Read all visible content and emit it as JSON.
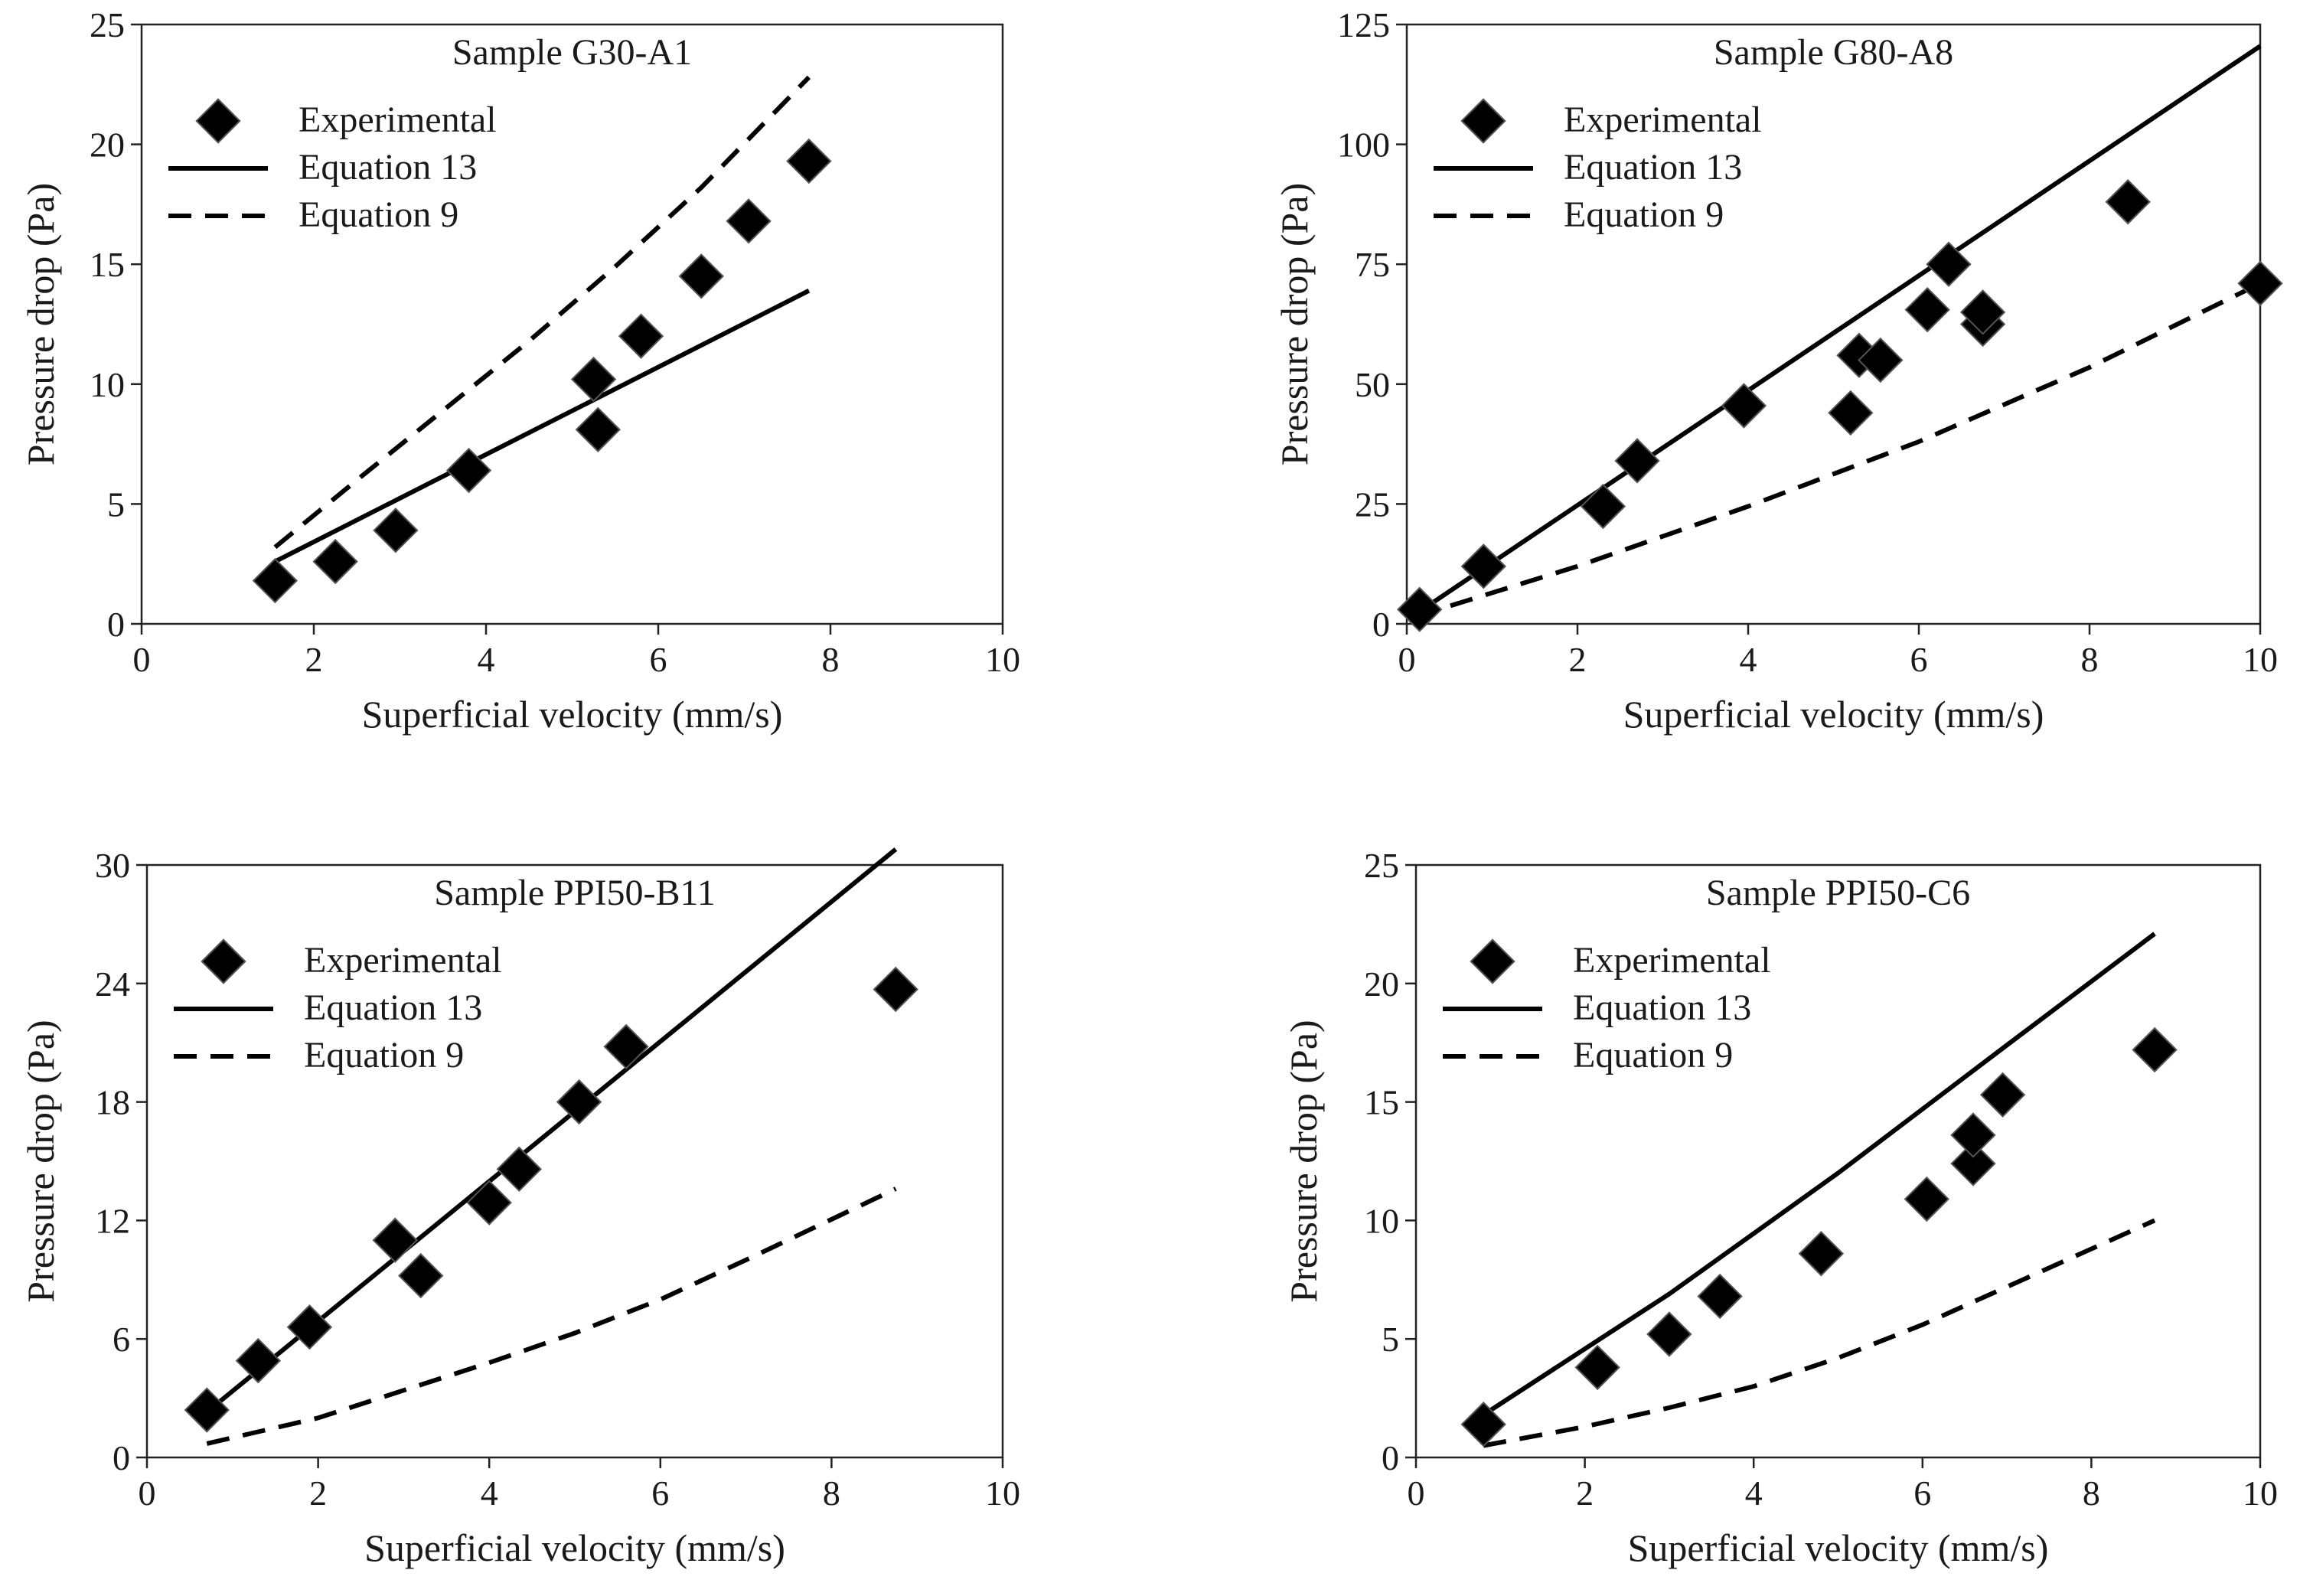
{
  "figure": {
    "legend_labels": {
      "experimental": "Experimental",
      "eq13": "Equation 13",
      "eq9": "Equation 9"
    },
    "colors": {
      "axis": "#222222",
      "series": "#000000",
      "background": "#ffffff"
    }
  },
  "chart_data": [
    {
      "id": "g30",
      "type": "scatter",
      "title": "Sample G30-A1",
      "xlabel": "Superficial velocity (mm/s)",
      "ylabel": "Pressure drop (Pa)",
      "xlim": [
        0,
        10
      ],
      "ylim": [
        0,
        25
      ],
      "xticks": [
        0,
        2,
        4,
        6,
        8,
        10
      ],
      "yticks": [
        0,
        5,
        10,
        15,
        20,
        25
      ],
      "legend_position": "top-left",
      "experimental": {
        "name": "Experimental",
        "points": [
          [
            1.55,
            1.8
          ],
          [
            2.25,
            2.6
          ],
          [
            2.95,
            3.9
          ],
          [
            3.8,
            6.4
          ],
          [
            5.25,
            10.2
          ],
          [
            5.3,
            8.1
          ],
          [
            5.8,
            12.0
          ],
          [
            6.5,
            14.5
          ],
          [
            7.05,
            16.8
          ],
          [
            7.75,
            19.3
          ]
        ]
      },
      "eq13": {
        "name": "Equation 13",
        "x": [
          1.55,
          7.75
        ],
        "y": [
          2.6,
          13.9
        ]
      },
      "eq9": {
        "name": "Equation 9",
        "x": [
          1.55,
          2.5,
          3.5,
          4.5,
          5.5,
          6.5,
          7.75
        ],
        "y": [
          3.2,
          6.0,
          8.9,
          11.8,
          14.9,
          18.2,
          22.8
        ]
      }
    },
    {
      "id": "g80",
      "type": "scatter",
      "title": "Sample G80-A8",
      "xlabel": "Superficial velocity (mm/s)",
      "ylabel": "Pressure drop (Pa)",
      "xlim": [
        0,
        10
      ],
      "ylim": [
        0,
        125
      ],
      "xticks": [
        0,
        2,
        4,
        6,
        8,
        10
      ],
      "yticks": [
        0,
        25,
        50,
        75,
        100,
        125
      ],
      "legend_position": "top-left",
      "experimental": {
        "name": "Experimental",
        "points": [
          [
            0.15,
            3
          ],
          [
            0.9,
            12
          ],
          [
            2.3,
            24.5
          ],
          [
            2.7,
            34
          ],
          [
            3.95,
            45.5
          ],
          [
            5.2,
            44
          ],
          [
            5.3,
            56
          ],
          [
            5.55,
            55
          ],
          [
            6.1,
            65.5
          ],
          [
            6.35,
            75
          ],
          [
            6.75,
            62.5
          ],
          [
            6.75,
            65
          ],
          [
            8.45,
            88
          ],
          [
            10.0,
            71
          ]
        ]
      },
      "eq13": {
        "name": "Equation 13",
        "x": [
          0.1,
          10
        ],
        "y": [
          2,
          120.5
        ]
      },
      "eq9": {
        "name": "Equation 9",
        "x": [
          0.1,
          2,
          4,
          6,
          8,
          10
        ],
        "y": [
          1.5,
          12.0,
          24.5,
          38.0,
          53.5,
          71.0
        ]
      }
    },
    {
      "id": "ppi50b11",
      "type": "scatter",
      "title": "Sample PPI50-B11",
      "xlabel": "Superficial velocity (mm/s)",
      "ylabel": "Pressure drop (Pa)",
      "xlim": [
        0,
        10
      ],
      "ylim": [
        0,
        30
      ],
      "xticks": [
        0,
        2,
        4,
        6,
        8,
        10
      ],
      "yticks": [
        0,
        6,
        12,
        18,
        24,
        30
      ],
      "legend_position": "top-left",
      "experimental": {
        "name": "Experimental",
        "points": [
          [
            0.7,
            2.4
          ],
          [
            1.3,
            4.9
          ],
          [
            1.9,
            6.6
          ],
          [
            2.9,
            11.0
          ],
          [
            3.2,
            9.2
          ],
          [
            4.0,
            12.9
          ],
          [
            4.35,
            14.6
          ],
          [
            5.05,
            18.0
          ],
          [
            5.6,
            20.8
          ],
          [
            8.75,
            23.7
          ]
        ]
      },
      "eq13": {
        "name": "Equation 13",
        "x": [
          0.7,
          8.75
        ],
        "y": [
          2.3,
          30.8
        ]
      },
      "eq9": {
        "name": "Equation 9",
        "x": [
          0.7,
          2,
          3,
          4,
          5,
          6,
          7,
          8.75
        ],
        "y": [
          0.7,
          2.0,
          3.4,
          4.8,
          6.3,
          8.0,
          10.0,
          13.6
        ]
      }
    },
    {
      "id": "ppi50c6",
      "type": "scatter",
      "title": "Sample PPI50-C6",
      "xlabel": "Superficial velocity (mm/s)",
      "ylabel": "Pressure drop (Pa)",
      "xlim": [
        0,
        10
      ],
      "ylim": [
        0,
        25
      ],
      "xticks": [
        0,
        2,
        4,
        6,
        8,
        10
      ],
      "yticks": [
        0,
        5,
        10,
        15,
        20,
        25
      ],
      "legend_position": "top-left",
      "experimental": {
        "name": "Experimental",
        "points": [
          [
            0.8,
            1.4
          ],
          [
            2.15,
            3.8
          ],
          [
            3.0,
            5.2
          ],
          [
            3.6,
            6.8
          ],
          [
            4.8,
            8.6
          ],
          [
            6.05,
            10.9
          ],
          [
            6.6,
            12.4
          ],
          [
            6.6,
            13.6
          ],
          [
            6.95,
            15.3
          ],
          [
            8.75,
            17.2
          ]
        ]
      },
      "eq13": {
        "name": "Equation 13",
        "x": [
          0.8,
          3.0,
          5.0,
          7.0,
          8.75
        ],
        "y": [
          1.8,
          6.9,
          12.0,
          17.4,
          22.1
        ]
      },
      "eq9": {
        "name": "Equation 9",
        "x": [
          0.8,
          2,
          3,
          4,
          5,
          6,
          7,
          8.75
        ],
        "y": [
          0.5,
          1.3,
          2.1,
          3.0,
          4.2,
          5.6,
          7.2,
          10.0
        ]
      }
    }
  ]
}
